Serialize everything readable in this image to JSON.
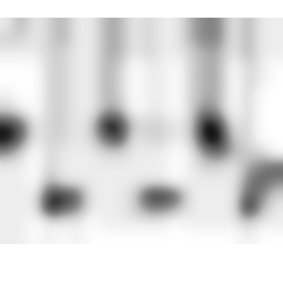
{
  "chart_data": {
    "type": "heatmap",
    "tick_labels": false,
    "color": "Greys",
    "cells": [
      [
        1,
        3,
        1,
        2,
        3,
        1,
        1,
        3,
        3,
        1,
        2,
        1,
        1,
        3,
        4,
        4,
        1,
        3,
        1,
        1
      ],
      [
        2,
        2,
        1,
        2,
        3,
        1,
        1,
        3,
        3,
        1,
        2,
        1,
        1,
        3,
        4,
        4,
        1,
        3,
        1,
        1
      ],
      [
        1,
        1,
        1,
        2,
        2,
        1,
        1,
        3,
        3,
        1,
        2,
        1,
        1,
        2,
        3,
        3,
        1,
        3,
        1,
        1
      ],
      [
        0,
        0,
        0,
        2,
        2,
        1,
        1,
        3,
        2,
        0,
        1,
        1,
        0,
        2,
        3,
        3,
        0,
        2,
        1,
        0
      ],
      [
        0,
        0,
        0,
        2,
        2,
        1,
        1,
        3,
        2,
        0,
        1,
        1,
        0,
        2,
        3,
        3,
        0,
        2,
        1,
        0
      ],
      [
        1,
        0,
        0,
        2,
        2,
        1,
        1,
        3,
        2,
        0,
        1,
        1,
        0,
        2,
        3,
        3,
        0,
        2,
        0,
        0
      ],
      [
        2,
        1,
        0,
        2,
        2,
        1,
        1,
        3,
        3,
        0,
        1,
        1,
        0,
        2,
        4,
        3,
        0,
        2,
        0,
        0
      ],
      [
        6,
        5,
        1,
        2,
        2,
        1,
        2,
        7,
        6,
        2,
        2,
        2,
        1,
        2,
        7,
        6,
        1,
        2,
        0,
        0
      ],
      [
        7,
        5,
        1,
        2,
        2,
        1,
        2,
        5,
        6,
        1,
        2,
        2,
        1,
        2,
        7,
        7,
        2,
        2,
        0,
        0
      ],
      [
        4,
        2,
        0,
        2,
        1,
        1,
        1,
        2,
        2,
        1,
        1,
        1,
        0,
        1,
        4,
        5,
        3,
        2,
        2,
        0
      ],
      [
        1,
        1,
        0,
        2,
        1,
        1,
        1,
        1,
        1,
        1,
        1,
        1,
        0,
        1,
        2,
        2,
        1,
        3,
        4,
        5
      ],
      [
        1,
        1,
        0,
        3,
        1,
        1,
        1,
        1,
        1,
        1,
        1,
        1,
        0,
        1,
        1,
        1,
        1,
        4,
        5,
        4
      ],
      [
        1,
        1,
        1,
        6,
        6,
        5,
        1,
        1,
        1,
        2,
        6,
        6,
        5,
        1,
        1,
        1,
        1,
        5,
        4,
        2
      ],
      [
        1,
        1,
        1,
        7,
        5,
        4,
        1,
        1,
        1,
        2,
        4,
        4,
        3,
        1,
        1,
        1,
        1,
        7,
        3,
        1
      ],
      [
        1,
        1,
        0,
        1,
        1,
        1,
        0,
        1,
        1,
        1,
        1,
        1,
        0,
        1,
        1,
        1,
        1,
        2,
        1,
        1
      ],
      [
        1,
        1,
        0,
        1,
        0,
        1,
        0,
        0,
        0,
        0,
        0,
        0,
        0,
        0,
        0,
        0,
        0,
        1,
        0,
        0
      ]
    ]
  }
}
